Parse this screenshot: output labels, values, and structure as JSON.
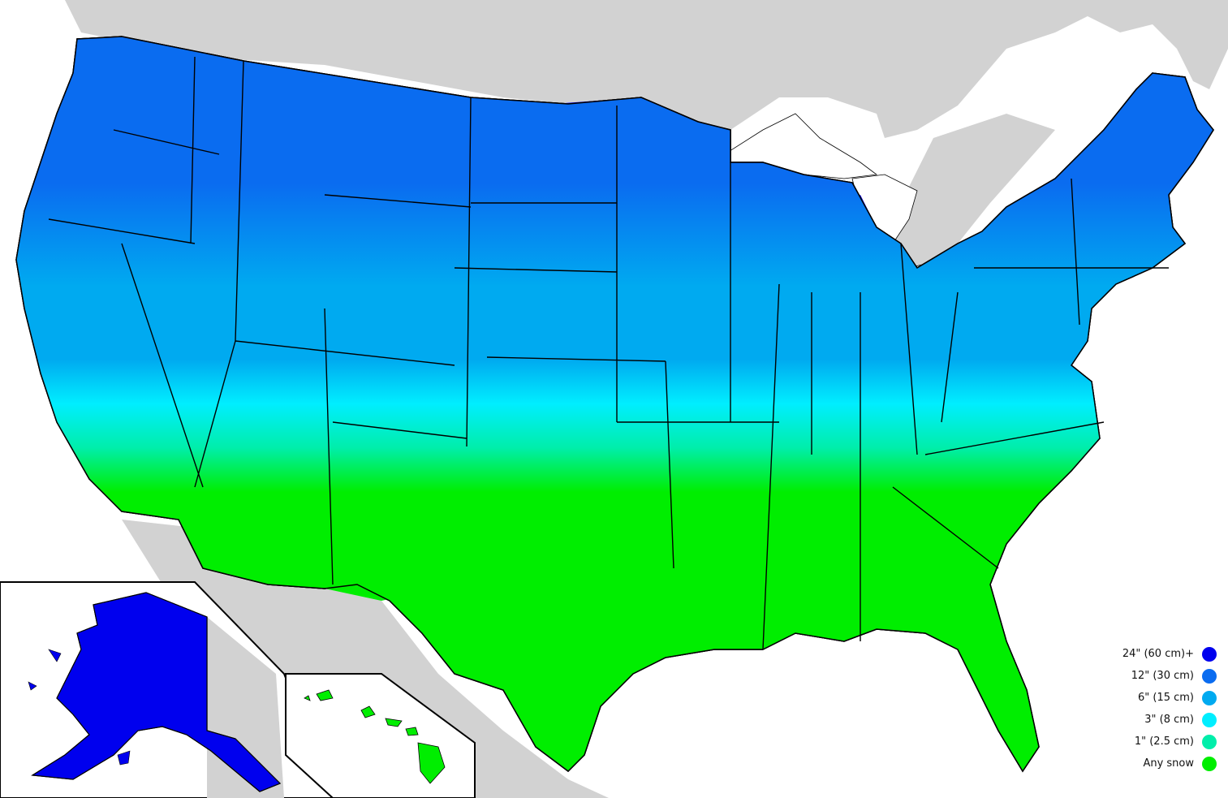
{
  "colors": {
    "24_plus": "#0000ee",
    "12": "#0a6cf0",
    "6": "#00aaf0",
    "3": "#00eeff",
    "1": "#00eeaa",
    "any": "#00ee00",
    "land_foreign": "#d2d2d2",
    "water": "#ffffff",
    "border": "#000000"
  },
  "legend": {
    "items": [
      {
        "label": "24\" (60 cm)+",
        "color": "#0000ee"
      },
      {
        "label": "12\" (30 cm)",
        "color": "#0a6cf0"
      },
      {
        "label": "6\" (15 cm)",
        "color": "#00aaf0"
      },
      {
        "label": "3\" (8 cm)",
        "color": "#00eeff"
      },
      {
        "label": "1\" (2.5 cm)",
        "color": "#00eeaa"
      },
      {
        "label": "Any snow",
        "color": "#00ee00"
      }
    ]
  },
  "regions": {
    "conus": "contiguous-united-states",
    "alaska": "alaska",
    "hawaii": "hawaii"
  }
}
